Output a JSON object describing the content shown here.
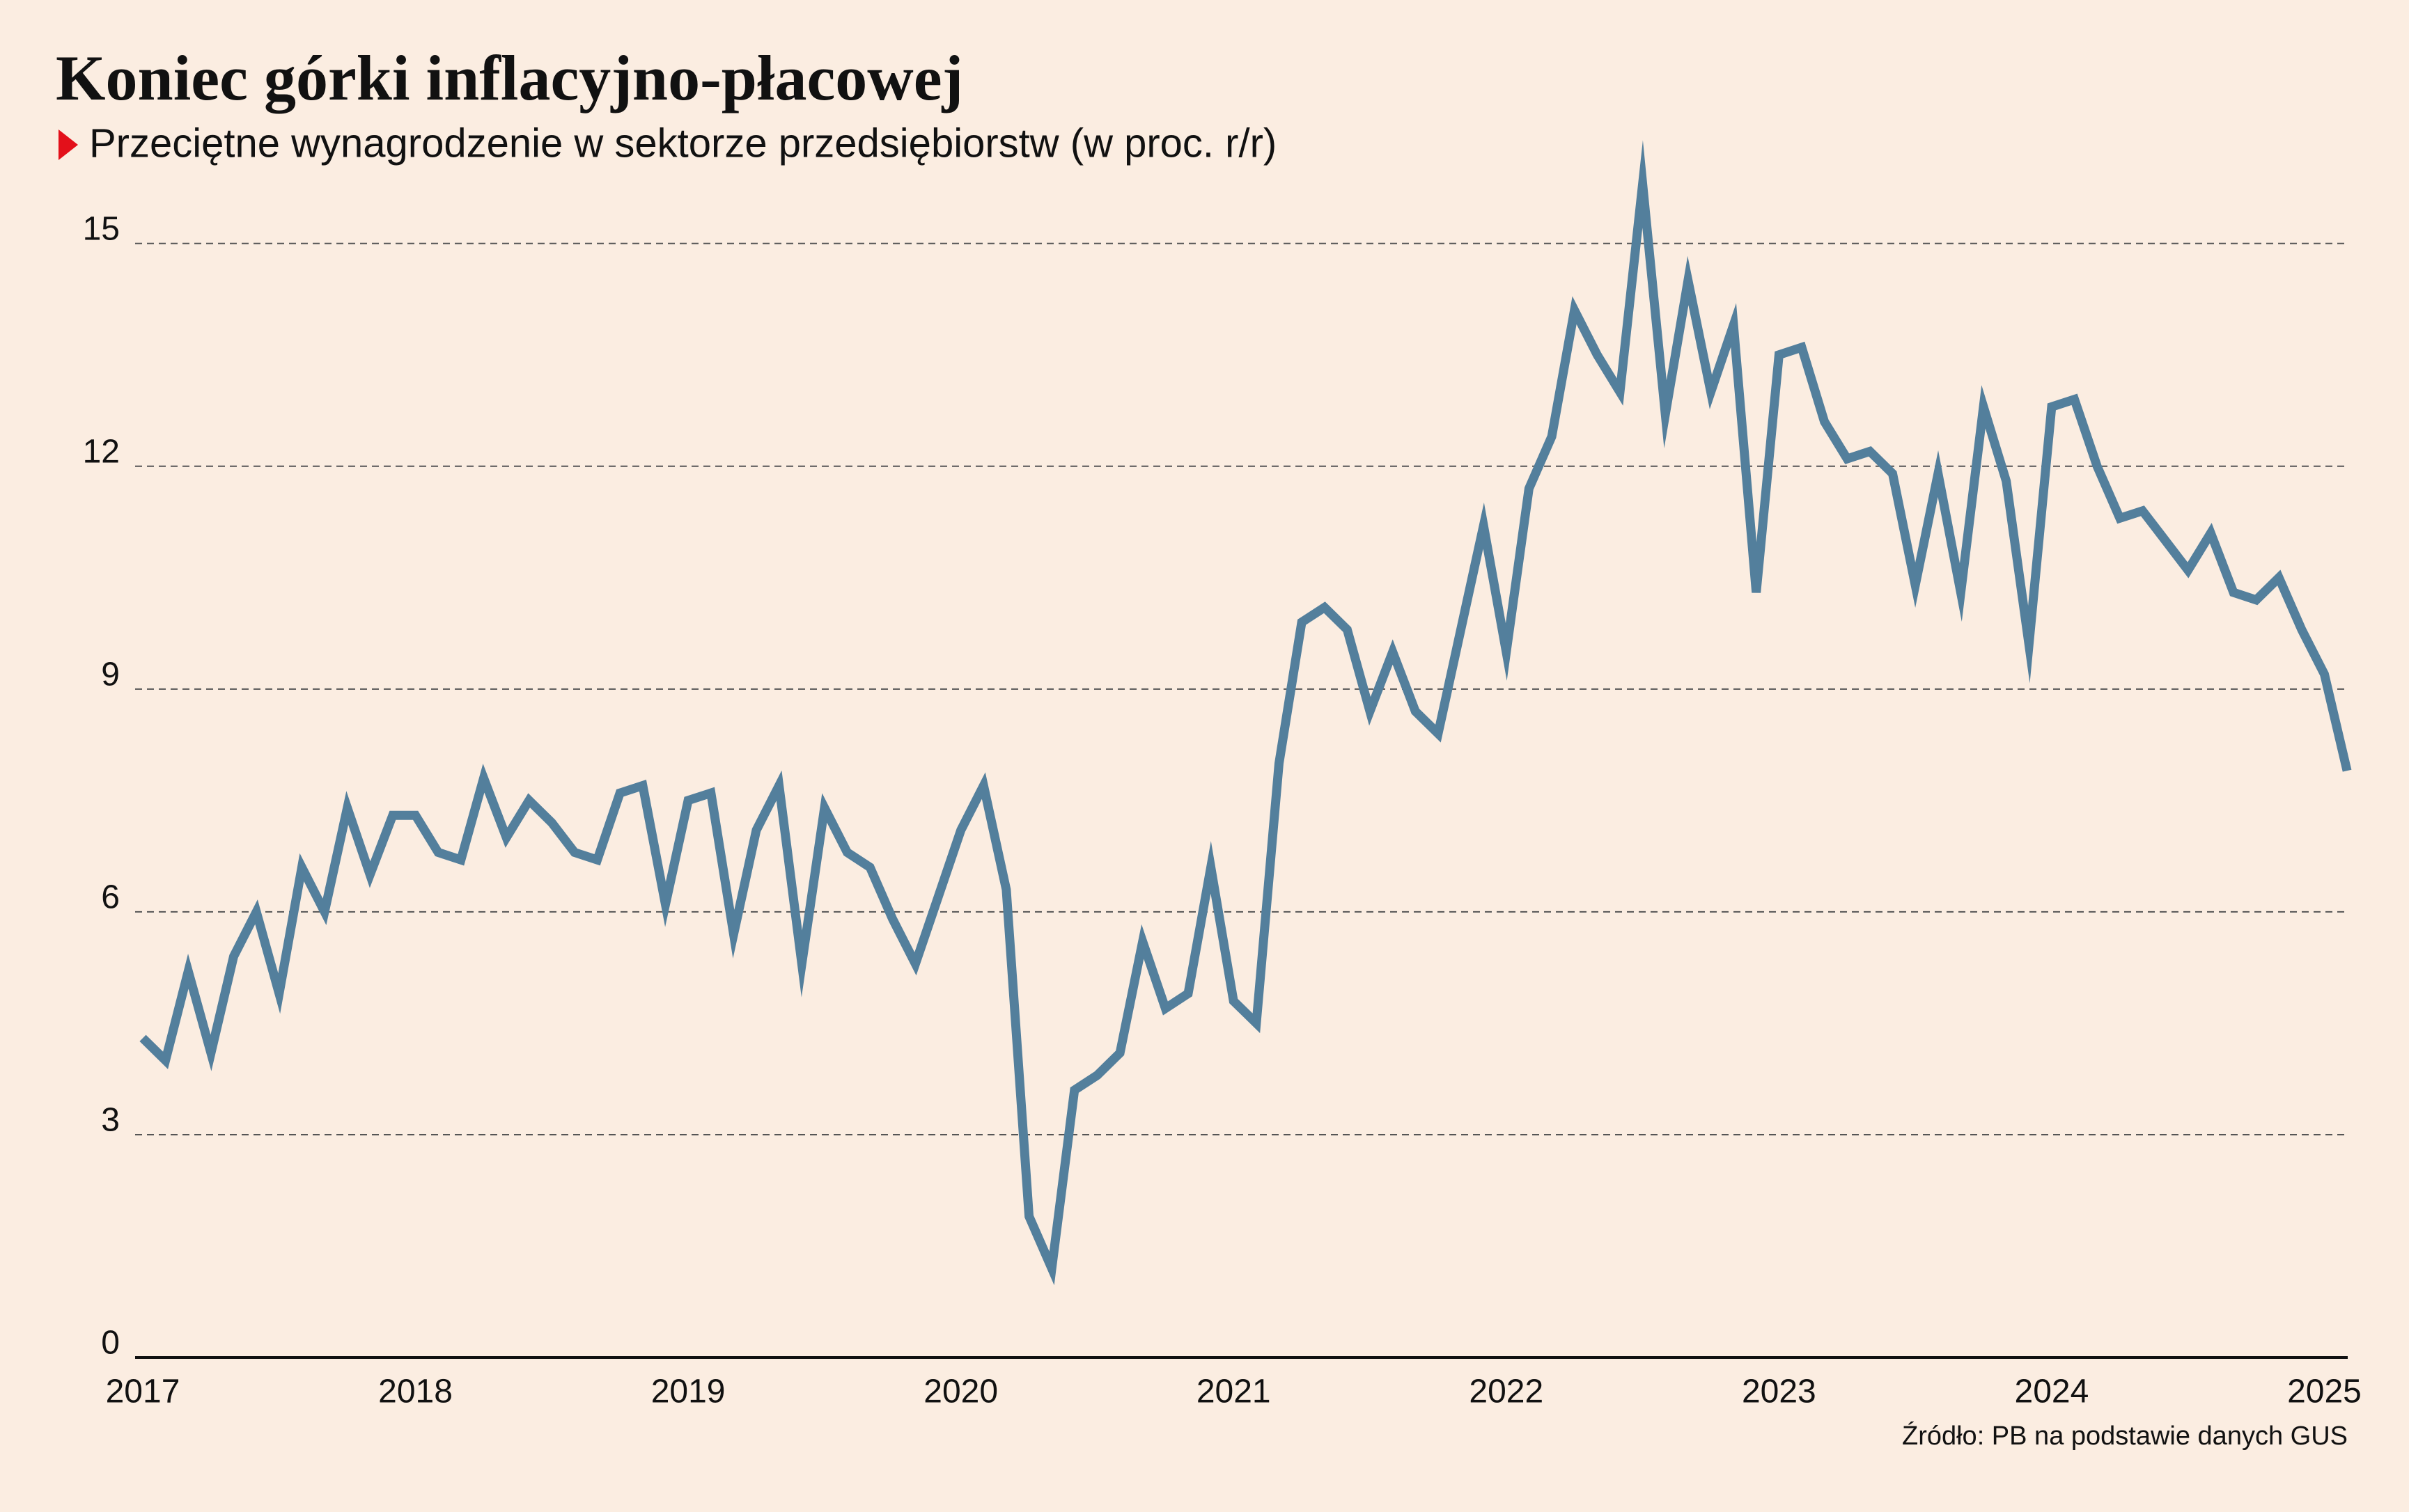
{
  "chart_data": {
    "type": "line",
    "title": "Koniec górki inflacyjno-płacowej",
    "subtitle": "Przeciętne wynagrodzenie w sektorze przedsiębiorstw (w proc. r/r)",
    "source": "Źródło: PB na podstawie danych GUS",
    "categories": [
      "2017",
      null,
      null,
      null,
      null,
      null,
      null,
      null,
      null,
      null,
      null,
      null,
      "2018",
      null,
      null,
      null,
      null,
      null,
      null,
      null,
      null,
      null,
      null,
      null,
      "2019",
      null,
      null,
      null,
      null,
      null,
      null,
      null,
      null,
      null,
      null,
      null,
      "2020",
      null,
      null,
      null,
      null,
      null,
      null,
      null,
      null,
      null,
      null,
      null,
      "2021",
      null,
      null,
      null,
      null,
      null,
      null,
      null,
      null,
      null,
      null,
      null,
      "2022",
      null,
      null,
      null,
      null,
      null,
      null,
      null,
      null,
      null,
      null,
      null,
      "2023",
      null,
      null,
      null,
      null,
      null,
      null,
      null,
      null,
      null,
      null,
      null,
      "2024",
      null,
      null,
      null,
      null,
      null,
      null,
      null,
      null,
      null,
      null,
      null,
      "2025",
      null
    ],
    "series": [
      {
        "name": "Przeciętne wynagrodzenie",
        "color": "#537f9c",
        "values": [
          4.3,
          4.0,
          5.2,
          4.1,
          5.4,
          6.0,
          4.9,
          6.6,
          6.0,
          7.4,
          6.5,
          7.3,
          7.3,
          6.8,
          6.7,
          7.8,
          7.0,
          7.5,
          7.2,
          6.8,
          6.7,
          7.6,
          7.7,
          6.1,
          7.5,
          7.6,
          5.7,
          7.1,
          7.7,
          5.3,
          7.4,
          6.8,
          6.6,
          5.9,
          5.3,
          6.2,
          7.1,
          7.7,
          6.3,
          1.9,
          1.2,
          3.6,
          3.8,
          4.1,
          5.6,
          4.7,
          4.9,
          6.6,
          4.8,
          4.5,
          8.0,
          9.9,
          10.1,
          9.8,
          8.7,
          9.5,
          8.7,
          8.4,
          9.8,
          11.2,
          9.5,
          11.7,
          12.4,
          14.1,
          13.5,
          13.0,
          15.8,
          12.7,
          14.5,
          13.0,
          13.9,
          10.3,
          13.5,
          13.6,
          12.6,
          12.1,
          12.2,
          11.9,
          10.4,
          11.9,
          10.3,
          12.8,
          11.8,
          9.6,
          12.8,
          12.9,
          12.0,
          11.3,
          11.4,
          11.0,
          10.6,
          11.1,
          10.3,
          10.2,
          10.5,
          9.8,
          9.2,
          7.9
        ]
      }
    ],
    "ylim": [
      0,
      16
    ],
    "yticks": [
      0,
      3,
      6,
      9,
      12,
      15
    ],
    "grid": true
  }
}
